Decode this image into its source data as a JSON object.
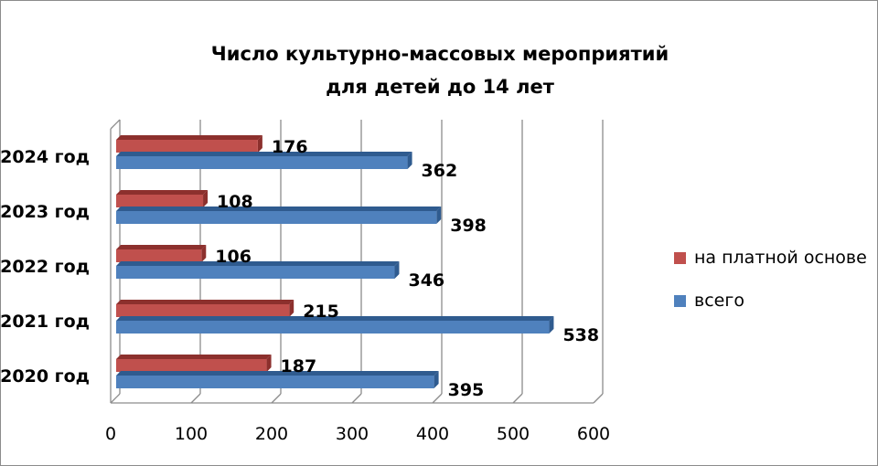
{
  "chart_data": {
    "type": "bar",
    "orientation": "horizontal",
    "style": "3d",
    "title": [
      "Число культурно-массовых мероприятий",
      "для детей до 14 лет"
    ],
    "categories": [
      "2020 год",
      "2021 год",
      "2022 год",
      "2023 год",
      "2024 год"
    ],
    "series": [
      {
        "name": "всего",
        "values": [
          395,
          538,
          346,
          398,
          362
        ],
        "color": "#4f81bd",
        "color_dark": "#2f5b8f"
      },
      {
        "name": "на платной основе",
        "values": [
          187,
          215,
          106,
          108,
          176
        ],
        "color": "#c0504d",
        "color_dark": "#8c302d"
      }
    ],
    "xlim": [
      0,
      600
    ],
    "xticks": [
      0,
      100,
      200,
      300,
      400,
      500,
      600
    ],
    "grid": true,
    "legend": "right",
    "legend_order": [
      "на платной основе",
      "всего"
    ]
  }
}
